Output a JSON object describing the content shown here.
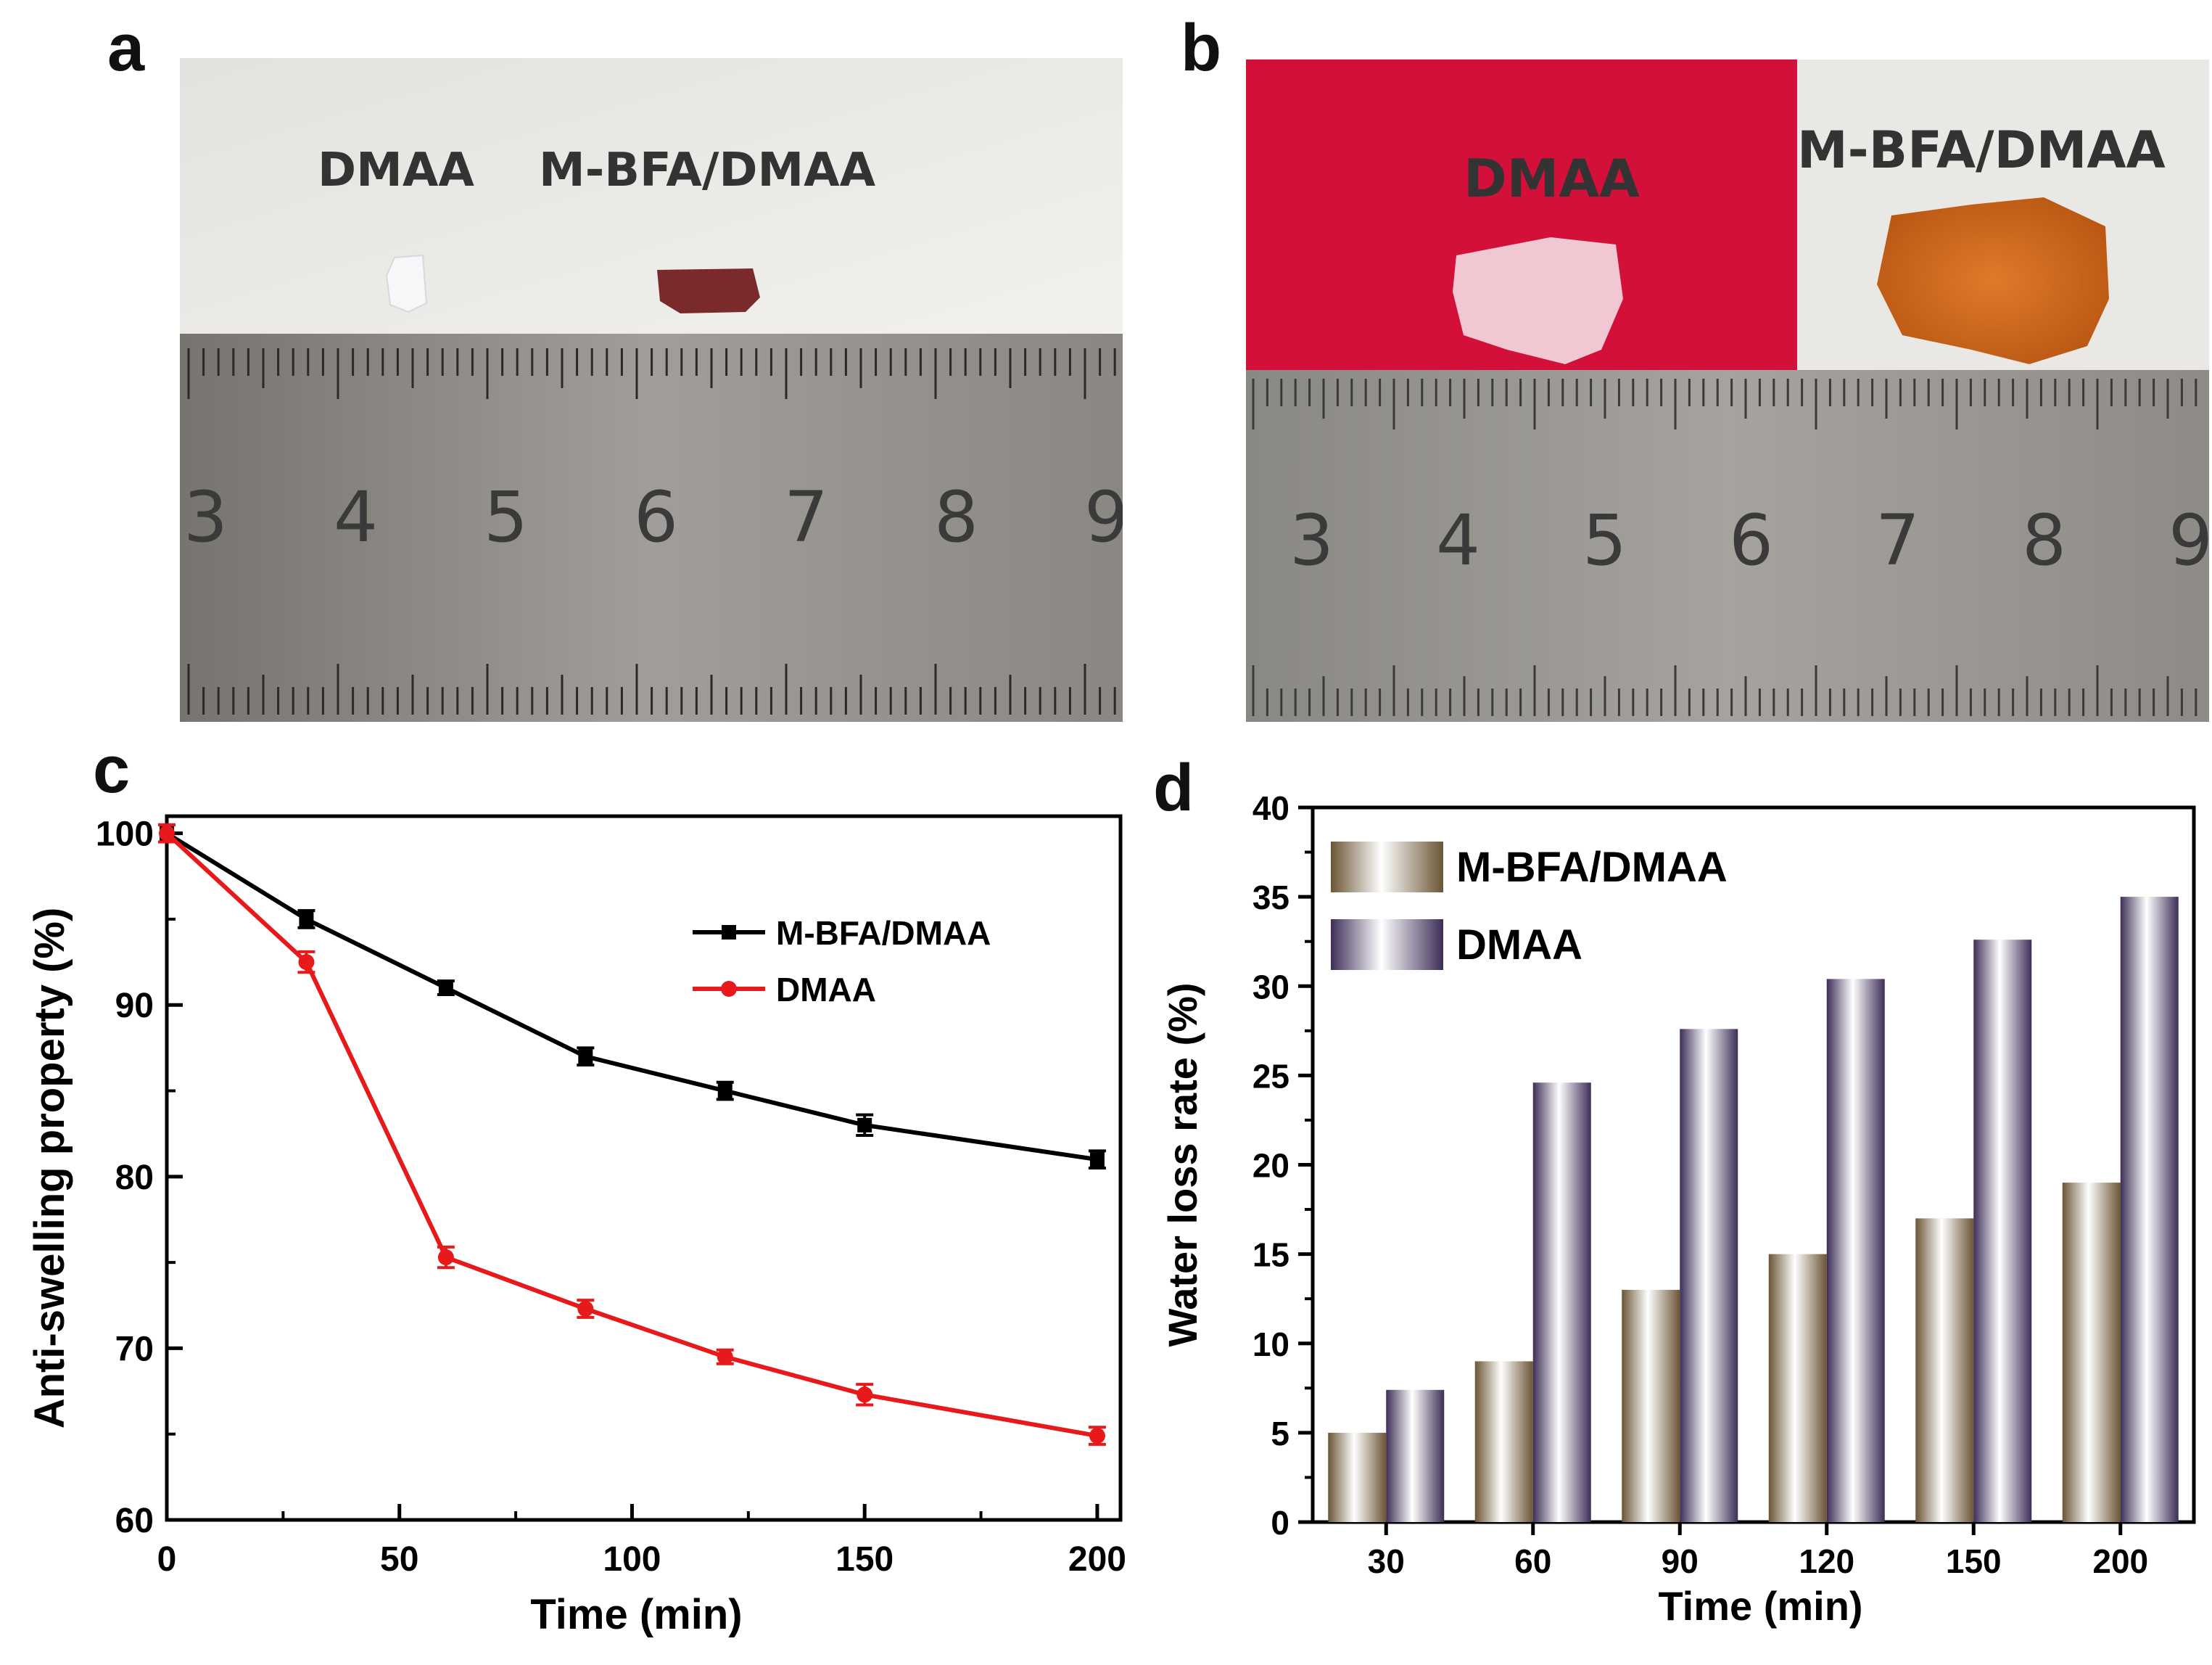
{
  "panels": {
    "a": {
      "letter": "a",
      "label_left": "DMAA",
      "label_right": "M-BFA/DMAA",
      "ruler_numbers": [
        "3",
        "4",
        "5",
        "6",
        "7",
        "8",
        "9"
      ]
    },
    "b": {
      "letter": "b",
      "label_left": "DMAA",
      "label_right": "M-BFA/DMAA",
      "ruler_numbers": [
        "3",
        "4",
        "5",
        "6",
        "7",
        "8",
        "9"
      ]
    },
    "c": {
      "letter": "c"
    },
    "d": {
      "letter": "d"
    }
  },
  "colors": {
    "black_series": "#000000",
    "red_series": "#e8191b",
    "photo_paper": "#eceae6",
    "ruler_metal": "#8d8b88",
    "red_background": "#d3103a",
    "bar_m_bfa_dark": "#6b5535",
    "bar_dmaa_dark": "#3e2e57"
  },
  "chart_data": [
    {
      "type": "line",
      "panel": "c",
      "title": "",
      "xlabel": "Time (min)",
      "ylabel": "Anti-swelling property (%)",
      "xlim": [
        0,
        205
      ],
      "ylim": [
        60,
        101
      ],
      "xticks": [
        0,
        50,
        100,
        150,
        200
      ],
      "yticks": [
        60,
        70,
        80,
        90,
        100
      ],
      "legend_position": "top-right",
      "series": [
        {
          "name": "M-BFA/DMAA",
          "color": "#000000",
          "marker": "square",
          "x": [
            0,
            30,
            60,
            90,
            120,
            150,
            200
          ],
          "y": [
            100,
            95,
            91,
            87,
            85,
            83,
            81
          ],
          "err": [
            0.5,
            0.5,
            0.4,
            0.5,
            0.5,
            0.6,
            0.5
          ]
        },
        {
          "name": "DMAA",
          "color": "#e8191b",
          "marker": "circle",
          "x": [
            0,
            30,
            60,
            90,
            120,
            150,
            200
          ],
          "y": [
            100,
            92.5,
            75.3,
            72.3,
            69.5,
            67.3,
            64.9
          ],
          "err": [
            0.5,
            0.6,
            0.6,
            0.5,
            0.4,
            0.6,
            0.5
          ]
        }
      ]
    },
    {
      "type": "bar",
      "panel": "d",
      "title": "",
      "xlabel": "Time (min)",
      "ylabel": "Water loss rate (%)",
      "categories": [
        "30",
        "60",
        "90",
        "120",
        "150",
        "200"
      ],
      "ylim": [
        0,
        40
      ],
      "yticks": [
        0,
        5,
        10,
        15,
        20,
        25,
        30,
        35,
        40
      ],
      "legend_position": "top-left",
      "series": [
        {
          "name": "M-BFA/DMAA",
          "values": [
            5,
            9,
            13,
            15,
            17,
            19
          ]
        },
        {
          "name": "DMAA",
          "values": [
            7.4,
            24.6,
            27.6,
            30.4,
            32.6,
            35.0
          ]
        }
      ]
    }
  ]
}
